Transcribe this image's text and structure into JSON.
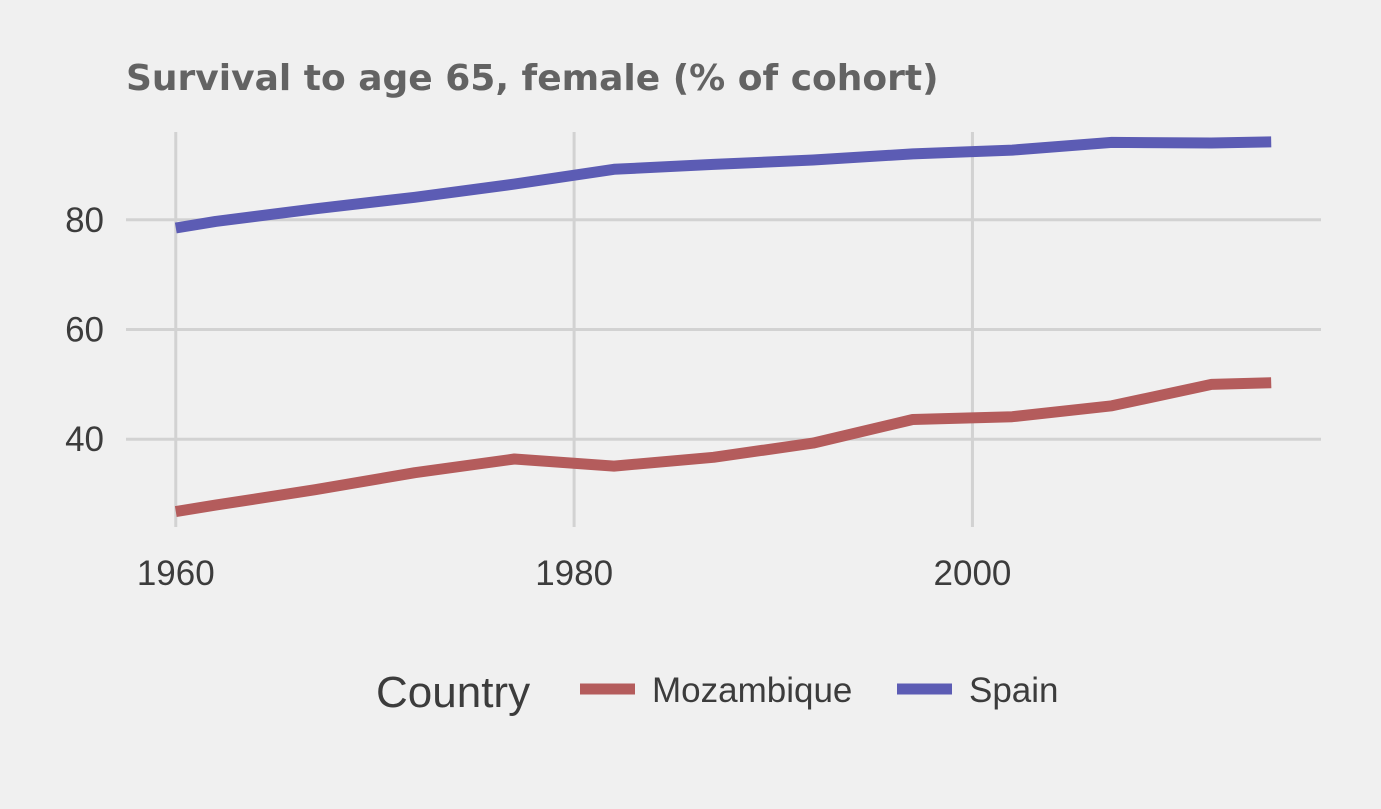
{
  "colors": {
    "background": "#f0f0f0",
    "grid": "#d2d2d2",
    "Mozambique": "#b45c5c",
    "Spain": "#5c5cb4"
  },
  "chart_data": {
    "type": "line",
    "title": "Survival to age 65, female (% of cohort)",
    "xlabel": "",
    "ylabel": "",
    "xlim": [
      1957.5,
      2017.5
    ],
    "ylim": [
      24,
      96
    ],
    "x_ticks": [
      1960,
      1980,
      2000
    ],
    "y_ticks": [
      40,
      60,
      80
    ],
    "grid": true,
    "legend": {
      "title": "Country",
      "position": "bottom"
    },
    "series": [
      {
        "name": "Mozambique",
        "color": "#b45c5c",
        "x": [
          1960,
          1962,
          1967,
          1972,
          1977,
          1982,
          1987,
          1992,
          1997,
          2002,
          2007,
          2012,
          2015
        ],
        "y": [
          26.8,
          28.0,
          30.8,
          33.9,
          36.4,
          35.1,
          36.7,
          39.3,
          43.6,
          44.1,
          46.1,
          50.0,
          50.3
        ]
      },
      {
        "name": "Spain",
        "color": "#5c5cb4",
        "x": [
          1960,
          1962,
          1967,
          1972,
          1977,
          1982,
          1987,
          1992,
          1997,
          2002,
          2007,
          2012,
          2015
        ],
        "y": [
          78.5,
          79.7,
          82.0,
          84.1,
          86.5,
          89.2,
          90.1,
          90.9,
          92.0,
          92.7,
          94.1,
          94.0,
          94.2
        ]
      }
    ]
  }
}
